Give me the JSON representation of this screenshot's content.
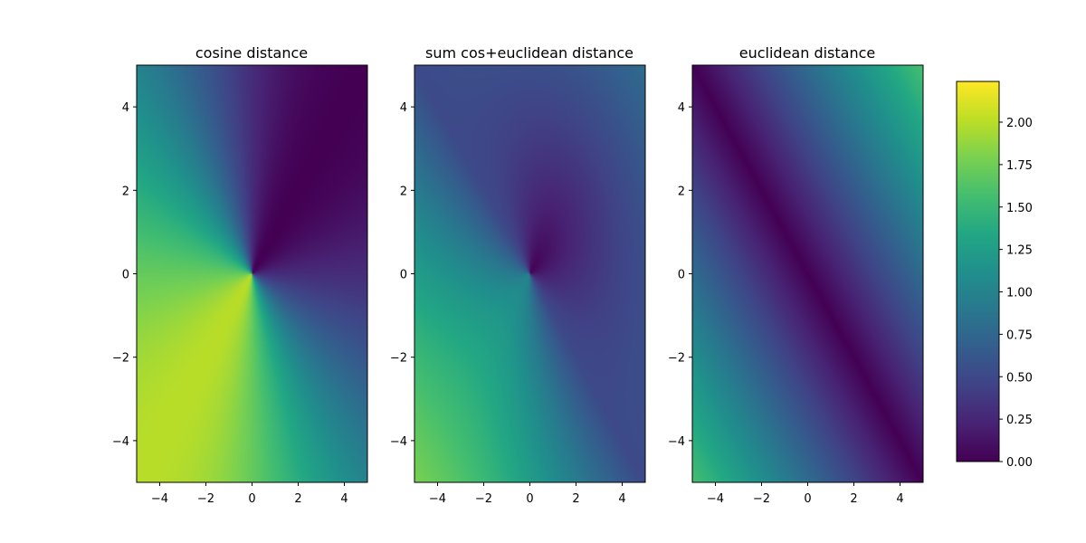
{
  "chart_data": [
    {
      "type": "heatmap",
      "title": "cosine distance",
      "xlabel": "",
      "ylabel": "",
      "xlim": [
        -5,
        5
      ],
      "ylim": [
        -5,
        5
      ],
      "xticks": [
        -4,
        -2,
        0,
        2,
        4
      ],
      "yticks": [
        -4,
        -2,
        0,
        2,
        4
      ],
      "xtick_labels": [
        "−4",
        "−2",
        "0",
        "2",
        "4"
      ],
      "ytick_labels": [
        "−4",
        "−2",
        "0",
        "2",
        "4"
      ],
      "function": "cosine",
      "colormap": "viridis",
      "vlim": [
        0,
        2.24
      ]
    },
    {
      "type": "heatmap",
      "title": "sum cos+euclidean distance",
      "xlabel": "",
      "ylabel": "",
      "xlim": [
        -5,
        5
      ],
      "ylim": [
        -5,
        5
      ],
      "xticks": [
        -4,
        -2,
        0,
        2,
        4
      ],
      "yticks": [
        -4,
        -2,
        0,
        2,
        4
      ],
      "xtick_labels": [
        "−4",
        "−2",
        "0",
        "2",
        "4"
      ],
      "ytick_labels": [
        "−4",
        "−2",
        "0",
        "2",
        "4"
      ],
      "function": "sum",
      "colormap": "viridis",
      "vlim": [
        0,
        2.24
      ]
    },
    {
      "type": "heatmap",
      "title": "euclidean distance",
      "xlabel": "",
      "ylabel": "",
      "xlim": [
        -5,
        5
      ],
      "ylim": [
        -5,
        5
      ],
      "xticks": [
        -4,
        -2,
        0,
        2,
        4
      ],
      "yticks": [
        -4,
        -2,
        0,
        2,
        4
      ],
      "xtick_labels": [
        "−4",
        "−2",
        "0",
        "2",
        "4"
      ],
      "ytick_labels": [
        "−4",
        "−2",
        "0",
        "2",
        "4"
      ],
      "function": "euclidean",
      "colormap": "viridis",
      "vlim": [
        0,
        2.24
      ]
    }
  ],
  "colorbar": {
    "colormap": "viridis",
    "range": [
      0,
      2.24
    ],
    "ticks": [
      0.0,
      0.25,
      0.5,
      0.75,
      1.0,
      1.25,
      1.5,
      1.75,
      2.0
    ],
    "tick_labels": [
      "0.00",
      "0.25",
      "0.50",
      "0.75",
      "1.00",
      "1.25",
      "1.50",
      "1.75",
      "2.00"
    ]
  }
}
